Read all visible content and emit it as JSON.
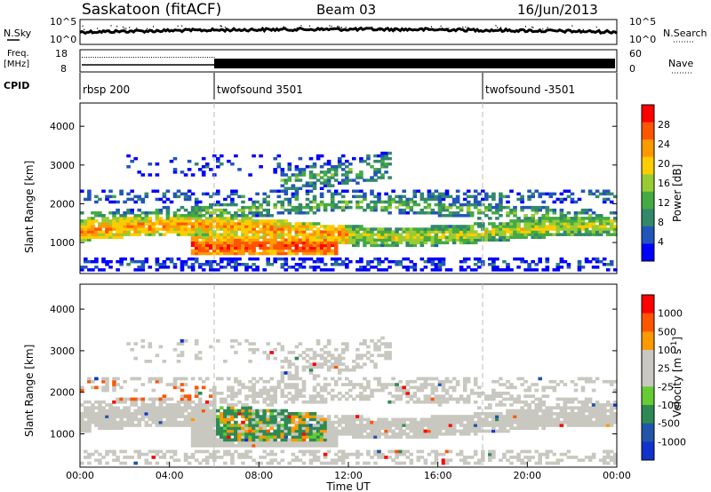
{
  "header": {
    "title": "Saskatoon (fitACF)",
    "beam": "Beam 03",
    "date": "16/Jun/2013"
  },
  "noise_panel": {
    "left_label": "N.Sky",
    "left_ticks": [
      "10^5",
      "10^0"
    ],
    "right_ticks": [
      "10^5",
      "10^0"
    ],
    "right_label": "N.Search"
  },
  "freq_panel": {
    "left_label_1": "Freq.",
    "left_label_2": "[MHz]",
    "left_ticks": [
      "18",
      "8"
    ],
    "right_ticks": [
      "60",
      "0"
    ],
    "right_label": "Nave"
  },
  "cpid_panel": {
    "label": "CPID",
    "segments": [
      {
        "name": "rbsp 200",
        "start_h": 0
      },
      {
        "name": "twofsound 3501",
        "start_h": 6
      },
      {
        "name": "twofsound -3501",
        "start_h": 18
      }
    ]
  },
  "colors": {
    "power": [
      "#0000ff",
      "#2255bb",
      "#33886a",
      "#44aa44",
      "#99cc33",
      "#ffcc00",
      "#ff9900",
      "#ff5500",
      "#ff0000"
    ],
    "velocity": [
      "#1133cc",
      "#2255aa",
      "#2e8a55",
      "#66cc33",
      "#c8c8c0",
      "#c8c8c0",
      "#ff9900",
      "#ff5500",
      "#ff0000"
    ]
  },
  "chart_data": [
    {
      "type": "heatmap",
      "panel": "power",
      "xlabel": "",
      "ylabel": "Slant Range [km]",
      "ylim": [
        200,
        4600
      ],
      "y_ticks": [
        "1000",
        "2000",
        "3000",
        "4000"
      ],
      "colorbar_label": "Power [dB]",
      "colorbar_ticks": [
        "28",
        "24",
        "20",
        "16",
        "12",
        "8",
        "4"
      ],
      "colorbar_range": [
        0,
        32
      ]
    },
    {
      "type": "heatmap",
      "panel": "velocity",
      "xlabel": "Time UT",
      "ylabel": "Slant Range [km]",
      "ylim": [
        200,
        4600
      ],
      "y_ticks": [
        "1000",
        "2000",
        "3000",
        "4000"
      ],
      "x_ticks": [
        "00:00",
        "04:00",
        "08:00",
        "12:00",
        "16:00",
        "20:00",
        "00:00"
      ],
      "xlim_hours": [
        0,
        24
      ],
      "colorbar_label": "Velocity [m s^-1]",
      "colorbar_ticks": [
        "1000",
        "500",
        "100",
        "25",
        "-25",
        "-100",
        "-500",
        "-1000"
      ]
    }
  ]
}
